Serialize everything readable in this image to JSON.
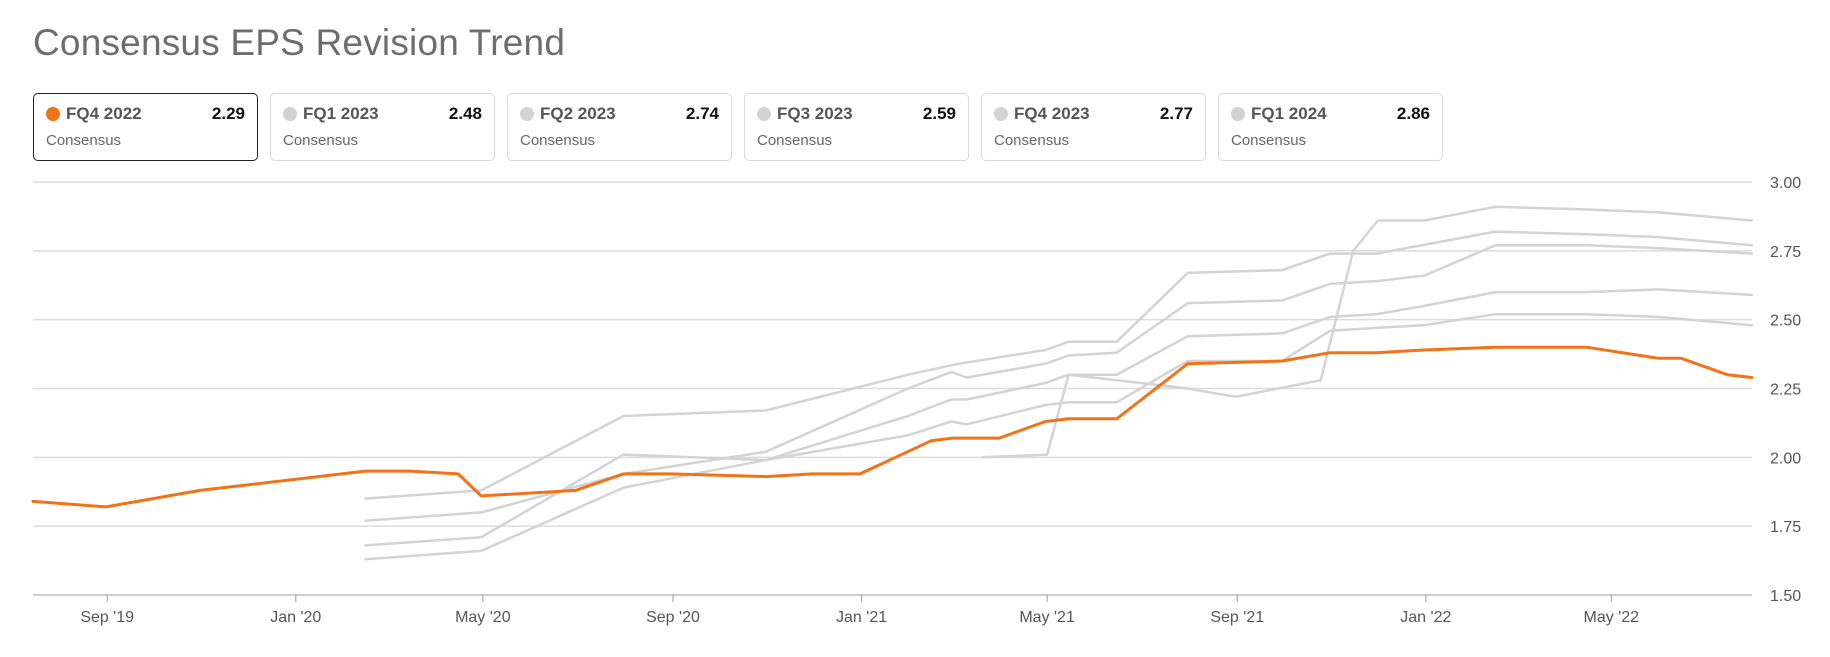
{
  "title": "Consensus EPS Revision Trend",
  "accent_color": "#f47216",
  "muted_color": "#d3d3d3",
  "cards": [
    {
      "label": "FQ4 2022",
      "value": "2.29",
      "sub": "Consensus",
      "active": true
    },
    {
      "label": "FQ1 2023",
      "value": "2.48",
      "sub": "Consensus",
      "active": false
    },
    {
      "label": "FQ2 2023",
      "value": "2.74",
      "sub": "Consensus",
      "active": false
    },
    {
      "label": "FQ3 2023",
      "value": "2.59",
      "sub": "Consensus",
      "active": false
    },
    {
      "label": "FQ4 2023",
      "value": "2.77",
      "sub": "Consensus",
      "active": false
    },
    {
      "label": "FQ1 2024",
      "value": "2.86",
      "sub": "Consensus",
      "active": false
    }
  ],
  "chart_data": {
    "type": "line",
    "title": "Consensus EPS Revision Trend",
    "xlabel": "",
    "ylabel": "",
    "xlim": [
      "2019-07-15",
      "2022-07-31"
    ],
    "ylim": [
      1.5,
      3.0
    ],
    "grid": true,
    "y_ticks": [
      "1.50",
      "1.75",
      "2.00",
      "2.25",
      "2.50",
      "2.75",
      "3.00"
    ],
    "x_ticks": [
      {
        "date": "2019-09-01",
        "label": "Sep '19"
      },
      {
        "date": "2020-01-01",
        "label": "Jan '20"
      },
      {
        "date": "2020-05-01",
        "label": "May '20"
      },
      {
        "date": "2020-09-01",
        "label": "Sep '20"
      },
      {
        "date": "2021-01-01",
        "label": "Jan '21"
      },
      {
        "date": "2021-05-01",
        "label": "May '21"
      },
      {
        "date": "2021-09-01",
        "label": "Sep '21"
      },
      {
        "date": "2022-01-01",
        "label": "Jan '22"
      },
      {
        "date": "2022-05-01",
        "label": "May '22"
      }
    ],
    "series": [
      {
        "name": "FQ1 2024",
        "highlight": false,
        "points": [
          [
            "2021-03-20",
            2.0
          ],
          [
            "2021-05-01",
            2.01
          ],
          [
            "2021-05-15",
            2.3
          ],
          [
            "2021-07-31",
            2.25
          ],
          [
            "2021-08-31",
            2.22
          ],
          [
            "2021-10-25",
            2.28
          ],
          [
            "2021-11-15",
            2.75
          ],
          [
            "2021-12-01",
            2.86
          ],
          [
            "2021-12-31",
            2.86
          ],
          [
            "2022-02-15",
            2.91
          ],
          [
            "2022-04-15",
            2.9
          ],
          [
            "2022-05-31",
            2.89
          ],
          [
            "2022-07-31",
            2.86
          ]
        ]
      },
      {
        "name": "FQ4 2023",
        "highlight": false,
        "points": [
          [
            "2020-02-15",
            1.85
          ],
          [
            "2020-04-30",
            1.88
          ],
          [
            "2020-07-31",
            2.15
          ],
          [
            "2020-10-31",
            2.17
          ],
          [
            "2021-01-31",
            2.3
          ],
          [
            "2021-03-05",
            2.34
          ],
          [
            "2021-04-30",
            2.39
          ],
          [
            "2021-05-15",
            2.42
          ],
          [
            "2021-06-15",
            2.42
          ],
          [
            "2021-07-31",
            2.67
          ],
          [
            "2021-09-30",
            2.68
          ],
          [
            "2021-10-31",
            2.74
          ],
          [
            "2021-11-30",
            2.74
          ],
          [
            "2022-02-15",
            2.82
          ],
          [
            "2022-04-15",
            2.81
          ],
          [
            "2022-05-31",
            2.8
          ],
          [
            "2022-07-31",
            2.77
          ]
        ]
      },
      {
        "name": "FQ2 2023",
        "highlight": false,
        "points": [
          [
            "2020-02-15",
            1.77
          ],
          [
            "2020-04-30",
            1.8
          ],
          [
            "2020-07-31",
            1.94
          ],
          [
            "2020-10-31",
            2.02
          ],
          [
            "2021-01-31",
            2.25
          ],
          [
            "2021-02-28",
            2.31
          ],
          [
            "2021-03-10",
            2.29
          ],
          [
            "2021-04-30",
            2.34
          ],
          [
            "2021-05-15",
            2.37
          ],
          [
            "2021-06-15",
            2.38
          ],
          [
            "2021-07-31",
            2.56
          ],
          [
            "2021-09-30",
            2.57
          ],
          [
            "2021-10-31",
            2.63
          ],
          [
            "2021-11-30",
            2.64
          ],
          [
            "2021-12-31",
            2.66
          ],
          [
            "2022-02-15",
            2.77
          ],
          [
            "2022-04-15",
            2.77
          ],
          [
            "2022-05-31",
            2.76
          ],
          [
            "2022-07-31",
            2.74
          ]
        ]
      },
      {
        "name": "FQ3 2023",
        "highlight": false,
        "points": [
          [
            "2020-02-15",
            1.68
          ],
          [
            "2020-04-30",
            1.71
          ],
          [
            "2020-07-31",
            2.01
          ],
          [
            "2020-10-31",
            1.99
          ],
          [
            "2021-01-31",
            2.15
          ],
          [
            "2021-02-28",
            2.21
          ],
          [
            "2021-03-10",
            2.21
          ],
          [
            "2021-04-30",
            2.27
          ],
          [
            "2021-05-15",
            2.3
          ],
          [
            "2021-06-15",
            2.3
          ],
          [
            "2021-07-31",
            2.44
          ],
          [
            "2021-09-30",
            2.45
          ],
          [
            "2021-10-31",
            2.51
          ],
          [
            "2021-11-30",
            2.52
          ],
          [
            "2021-12-31",
            2.55
          ],
          [
            "2022-02-15",
            2.6
          ],
          [
            "2022-04-15",
            2.6
          ],
          [
            "2022-05-31",
            2.61
          ],
          [
            "2022-07-31",
            2.59
          ]
        ]
      },
      {
        "name": "FQ1 2023",
        "highlight": false,
        "points": [
          [
            "2020-02-15",
            1.63
          ],
          [
            "2020-04-30",
            1.66
          ],
          [
            "2020-07-31",
            1.89
          ],
          [
            "2020-10-31",
            1.99
          ],
          [
            "2021-01-31",
            2.08
          ],
          [
            "2021-02-28",
            2.13
          ],
          [
            "2021-03-10",
            2.12
          ],
          [
            "2021-04-30",
            2.19
          ],
          [
            "2021-05-15",
            2.2
          ],
          [
            "2021-06-15",
            2.2
          ],
          [
            "2021-07-31",
            2.35
          ],
          [
            "2021-09-30",
            2.35
          ],
          [
            "2021-10-31",
            2.46
          ],
          [
            "2021-11-30",
            2.47
          ],
          [
            "2021-12-31",
            2.48
          ],
          [
            "2022-02-15",
            2.52
          ],
          [
            "2022-04-15",
            2.52
          ],
          [
            "2022-05-31",
            2.51
          ],
          [
            "2022-07-31",
            2.48
          ]
        ]
      },
      {
        "name": "FQ4 2022",
        "highlight": true,
        "points": [
          [
            "2019-07-15",
            1.84
          ],
          [
            "2019-08-31",
            1.82
          ],
          [
            "2019-10-31",
            1.88
          ],
          [
            "2020-02-15",
            1.95
          ],
          [
            "2020-03-15",
            1.95
          ],
          [
            "2020-04-15",
            1.94
          ],
          [
            "2020-04-30",
            1.86
          ],
          [
            "2020-06-30",
            1.88
          ],
          [
            "2020-07-31",
            1.94
          ],
          [
            "2020-08-31",
            1.94
          ],
          [
            "2020-10-31",
            1.93
          ],
          [
            "2020-11-30",
            1.94
          ],
          [
            "2020-12-31",
            1.94
          ],
          [
            "2021-02-15",
            2.06
          ],
          [
            "2021-03-01",
            2.07
          ],
          [
            "2021-03-31",
            2.07
          ],
          [
            "2021-04-30",
            2.13
          ],
          [
            "2021-05-15",
            2.14
          ],
          [
            "2021-06-15",
            2.14
          ],
          [
            "2021-07-31",
            2.34
          ],
          [
            "2021-09-30",
            2.35
          ],
          [
            "2021-10-31",
            2.38
          ],
          [
            "2021-11-30",
            2.38
          ],
          [
            "2021-12-31",
            2.39
          ],
          [
            "2022-02-15",
            2.4
          ],
          [
            "2022-04-15",
            2.4
          ],
          [
            "2022-05-31",
            2.36
          ],
          [
            "2022-06-15",
            2.36
          ],
          [
            "2022-07-15",
            2.3
          ],
          [
            "2022-07-31",
            2.29
          ]
        ]
      }
    ]
  }
}
